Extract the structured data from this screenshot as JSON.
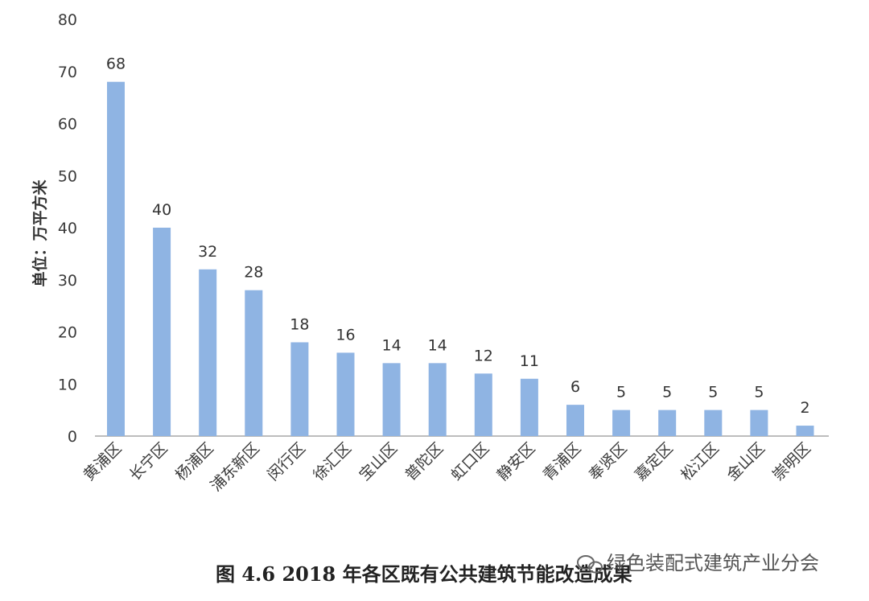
{
  "chart_data": {
    "type": "bar",
    "categories": [
      "黄浦区",
      "长宁区",
      "杨浦区",
      "浦东新区",
      "闵行区",
      "徐汇区",
      "宝山区",
      "普陀区",
      "虹口区",
      "静安区",
      "青浦区",
      "奉贤区",
      "嘉定区",
      "松江区",
      "金山区",
      "崇明区"
    ],
    "values": [
      68,
      40,
      32,
      28,
      18,
      16,
      14,
      14,
      12,
      11,
      6,
      5,
      5,
      5,
      5,
      2
    ],
    "data_labels": [
      "68",
      "40",
      "32",
      "28",
      "18",
      "16",
      "14",
      "14",
      "12",
      "11",
      "6",
      "5",
      "5",
      "5",
      "5",
      "2"
    ],
    "ylabel": "单位：万平方米",
    "ylim": [
      0,
      80
    ],
    "yticks": [
      "0",
      "10",
      "20",
      "30",
      "40",
      "50",
      "60",
      "70",
      "80"
    ],
    "grid": false,
    "bar_color": "#8fb4e3"
  },
  "caption": "图 4.6   2018 年各区既有公共建筑节能改造成果",
  "watermark": "绿色装配式建筑产业分会"
}
